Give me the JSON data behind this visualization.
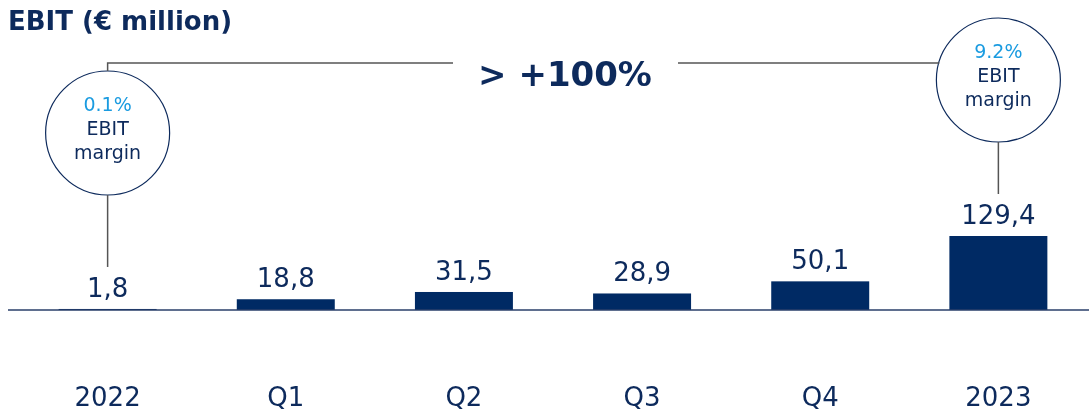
{
  "chart_data": {
    "type": "bar",
    "title": "EBIT (€ million)",
    "categories": [
      "2022",
      "Q1",
      "Q2",
      "Q3",
      "Q4",
      "2023"
    ],
    "values": [
      1.8,
      18.8,
      31.5,
      28.9,
      50.1,
      129.4
    ],
    "value_labels": [
      "1,8",
      "18,8",
      "31,5",
      "28,9",
      "50,1",
      "129,4"
    ],
    "color": "#002a64",
    "annotations": [
      "> +100%",
      "0.1% EBIT margin",
      "9.2% EBIT margin"
    ]
  }
}
